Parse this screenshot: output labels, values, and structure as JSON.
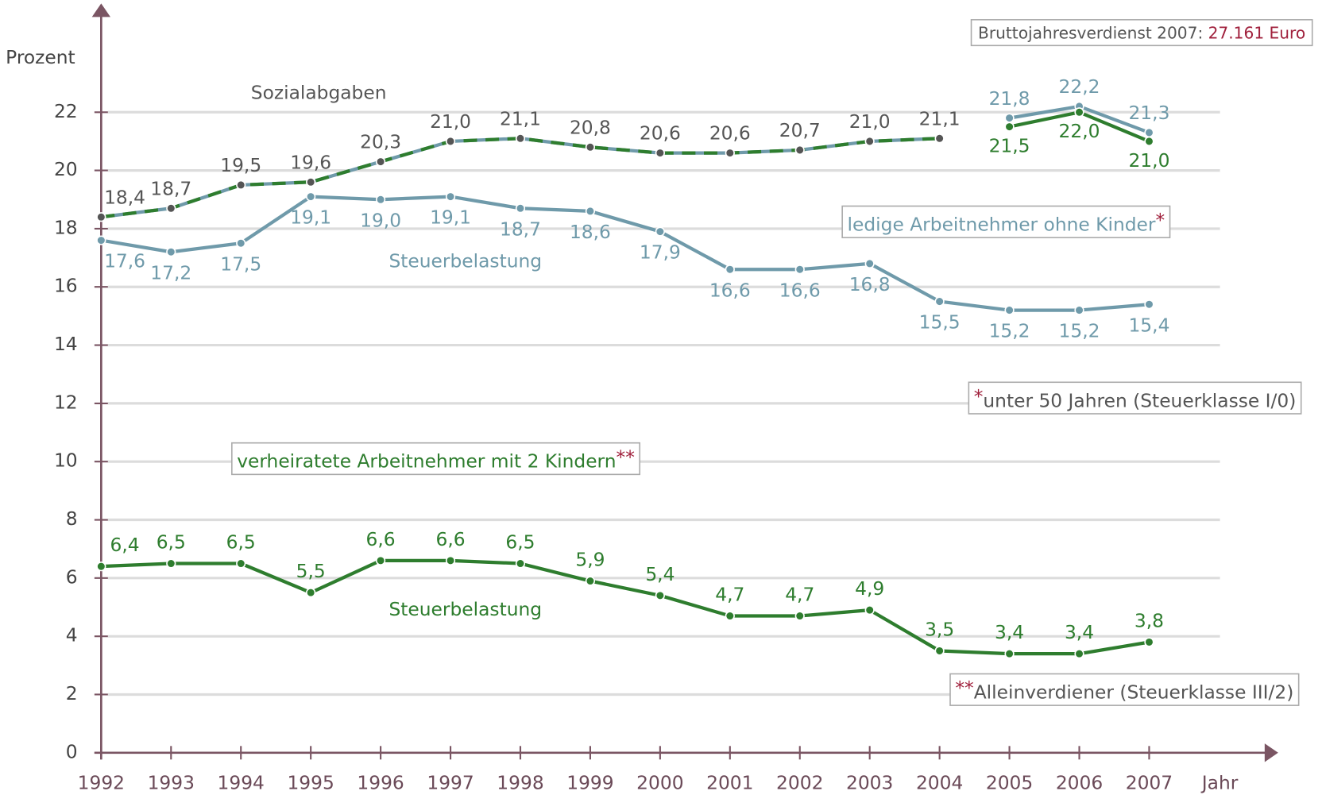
{
  "chart_data": {
    "type": "line",
    "y_label": "Prozent",
    "x_label": "Jahr",
    "x": [
      1992,
      1993,
      1994,
      1995,
      1996,
      1997,
      1998,
      1999,
      2000,
      2001,
      2002,
      2003,
      2004,
      2005,
      2006,
      2007
    ],
    "xlim": [
      1992,
      2007
    ],
    "ylim": [
      0,
      22
    ],
    "yticks": [
      0,
      2,
      4,
      6,
      8,
      10,
      12,
      14,
      16,
      18,
      20,
      22
    ],
    "grid": true,
    "series": [
      {
        "name": "Sozialabgaben",
        "color": "#2e7d2e",
        "color2": "#6f9aaa",
        "label_color": "#555555",
        "values": [
          18.4,
          18.7,
          19.5,
          19.6,
          20.3,
          21.0,
          21.1,
          20.8,
          20.6,
          20.6,
          20.7,
          21.0,
          21.1,
          null,
          null,
          null
        ],
        "value_labels": [
          "18,4",
          "18,7",
          "19,5",
          "19,6",
          "20,3",
          "21,0",
          "21,1",
          "20,8",
          "20,6",
          "20,6",
          "20,7",
          "21,0",
          "21,1",
          null,
          null,
          null
        ]
      },
      {
        "name": "Steuerbelastung",
        "color": "#6f9aaa",
        "values": [
          17.6,
          17.2,
          17.5,
          19.1,
          19.0,
          19.1,
          18.7,
          18.6,
          17.9,
          16.6,
          16.6,
          16.8,
          15.5,
          15.2,
          15.2,
          15.4
        ],
        "value_labels": [
          "17,6",
          "17,2",
          "17,5",
          "19,1",
          "19,0",
          "19,1",
          "18,7",
          "18,6",
          "17,9",
          "16,6",
          "16,6",
          "16,8",
          "15,5",
          "15,2",
          "15,2",
          "15,4"
        ]
      },
      {
        "name": "Steuerbelastung",
        "color": "#2e7d2e",
        "values": [
          6.4,
          6.5,
          6.5,
          5.5,
          6.6,
          6.6,
          6.5,
          5.9,
          5.4,
          4.7,
          4.7,
          4.9,
          3.5,
          3.4,
          3.4,
          3.8
        ],
        "value_labels": [
          "6,4",
          "6,5",
          "6,5",
          "5,5",
          "6,6",
          "6,6",
          "6,5",
          "5,9",
          "5,4",
          "4,7",
          "4,7",
          "4,9",
          "3,5",
          "3,4",
          "3,4",
          "3,8"
        ]
      },
      {
        "color": "#6f9aaa",
        "values": [
          null,
          null,
          null,
          null,
          null,
          null,
          null,
          null,
          null,
          null,
          null,
          null,
          null,
          21.8,
          22.2,
          21.3
        ],
        "value_labels": [
          null,
          null,
          null,
          null,
          null,
          null,
          null,
          null,
          null,
          null,
          null,
          null,
          null,
          "21,8",
          "22,2",
          "21,3"
        ]
      },
      {
        "color": "#2e7d2e",
        "values": [
          null,
          null,
          null,
          null,
          null,
          null,
          null,
          null,
          null,
          null,
          null,
          null,
          null,
          21.5,
          22.0,
          21.0
        ],
        "value_labels": [
          null,
          null,
          null,
          null,
          null,
          null,
          null,
          null,
          null,
          null,
          null,
          null,
          null,
          "21,5",
          "22,0",
          "21,0"
        ]
      }
    ],
    "legend": [
      {
        "text": "ledige Arbeitnehmer ohne Kinder",
        "mark": "*",
        "color": "#6f9aaa"
      },
      {
        "text": "verheiratete Arbeitnehmer mit 2 Kindern",
        "mark": "**",
        "color": "#2e7d2e"
      }
    ],
    "footnotes": [
      {
        "mark": "*",
        "text": "unter 50 Jahren (Steuerklasse I/0)"
      },
      {
        "mark": "**",
        "text": "Alleinverdiener (Steuerklasse III/2)"
      }
    ],
    "info": {
      "text": "Bruttojahresverdienst 2007:",
      "value": "27.161 Euro"
    }
  }
}
